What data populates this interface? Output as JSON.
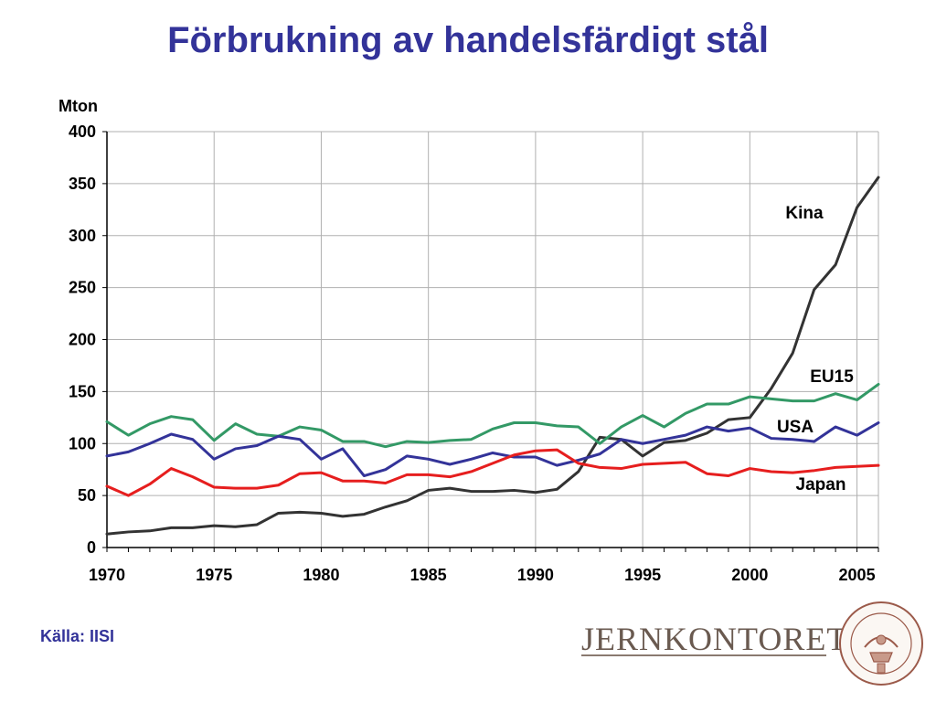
{
  "title": "Förbrukning av handelsfärdigt stål",
  "source": "Källa: IISI",
  "logo": {
    "wordmark": "JERNKONTORET",
    "seal_text": [
      "JERN",
      "CONTOIRETS",
      "SIGILL"
    ]
  },
  "chart_data": {
    "type": "line",
    "ylabel": "Mton",
    "xlabel": "",
    "xlim": [
      1970,
      2006
    ],
    "ylim": [
      0,
      400
    ],
    "xticks": [
      1970,
      1975,
      1980,
      1985,
      1990,
      1995,
      2000,
      2005
    ],
    "yticks": [
      0,
      50,
      100,
      150,
      200,
      250,
      300,
      350,
      400
    ],
    "grid": true,
    "legend": "inline labels",
    "x": [
      1970,
      1971,
      1972,
      1973,
      1974,
      1975,
      1976,
      1977,
      1978,
      1979,
      1980,
      1981,
      1982,
      1983,
      1984,
      1985,
      1986,
      1987,
      1988,
      1989,
      1990,
      1991,
      1992,
      1993,
      1994,
      1995,
      1996,
      1997,
      1998,
      1999,
      2000,
      2001,
      2002,
      2003,
      2004,
      2005,
      2006
    ],
    "series": [
      {
        "name": "Kina",
        "color": "#333333",
        "values": [
          13,
          15,
          16,
          19,
          19,
          21,
          20,
          22,
          33,
          34,
          33,
          30,
          32,
          39,
          45,
          55,
          57,
          54,
          54,
          55,
          53,
          56,
          73,
          106,
          104,
          88,
          101,
          103,
          110,
          123,
          125,
          153,
          187,
          248,
          272,
          327,
          356
        ]
      },
      {
        "name": "EU15",
        "color": "#339966",
        "values": [
          121,
          108,
          119,
          126,
          123,
          103,
          119,
          109,
          107,
          116,
          113,
          102,
          102,
          97,
          102,
          101,
          103,
          104,
          114,
          120,
          120,
          117,
          116,
          100,
          116,
          127,
          116,
          129,
          138,
          138,
          145,
          143,
          141,
          141,
          148,
          142,
          157
        ]
      },
      {
        "name": "USA",
        "color": "#333399",
        "values": [
          88,
          92,
          100,
          109,
          104,
          85,
          95,
          98,
          107,
          104,
          85,
          95,
          69,
          75,
          88,
          85,
          80,
          85,
          91,
          87,
          87,
          79,
          84,
          90,
          104,
          100,
          104,
          108,
          116,
          112,
          115,
          105,
          104,
          102,
          116,
          108,
          120
        ]
      },
      {
        "name": "Japan",
        "color": "#e61e1e",
        "values": [
          59,
          50,
          61,
          76,
          68,
          58,
          57,
          57,
          60,
          71,
          72,
          64,
          64,
          62,
          70,
          70,
          68,
          73,
          81,
          89,
          93,
          94,
          81,
          77,
          76,
          80,
          81,
          82,
          71,
          69,
          76,
          73,
          72,
          74,
          77,
          78,
          79
        ]
      }
    ]
  }
}
